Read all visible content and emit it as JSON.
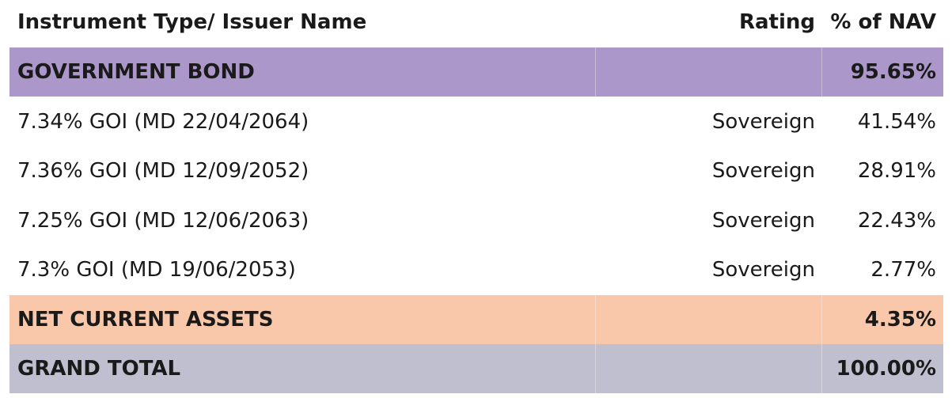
{
  "table": {
    "header": [
      "Instrument Type/ Issuer Name",
      "Rating",
      "% of NAV"
    ],
    "rows": [
      {
        "name": "GOVERNMENT BOND",
        "nav": "95.65%"
      },
      {
        "name": "7.34% GOI (MD 22/04/2064)",
        "rating": "Sovereign",
        "nav": "41.54%"
      },
      {
        "name": "7.36% GOI (MD 12/09/2052)",
        "rating": "Sovereign",
        "nav": "28.91%"
      },
      {
        "name": "7.25% GOI (MD 12/06/2063)",
        "rating": "Sovereign",
        "nav": "22.43%"
      },
      {
        "name": "7.3% GOI (MD 19/06/2053)",
        "rating": "Sovereign",
        "nav": "2.77%"
      },
      {
        "name": "NET CURRENT ASSETS",
        "nav": "4.35%"
      },
      {
        "name": "GRAND TOTAL",
        "nav": "100.00%"
      }
    ]
  }
}
